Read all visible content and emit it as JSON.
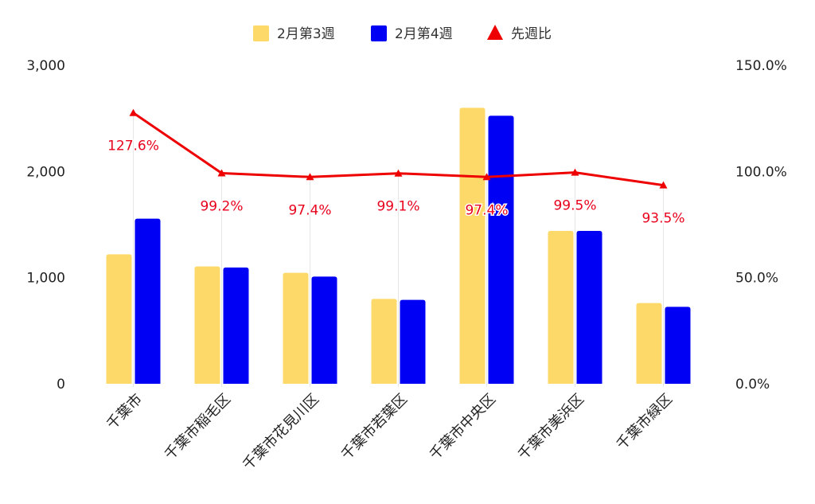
{
  "chart_data": {
    "type": "bar",
    "categories": [
      "千葉市",
      "千葉市稲毛区",
      "千葉市花見川区",
      "千葉市若葉区",
      "千葉市中央区",
      "千葉市美浜区",
      "千葉市緑区"
    ],
    "series": [
      {
        "name": "2月第3週",
        "kind": "bar",
        "axis": "left",
        "color": "#FDD96A",
        "values": [
          1220,
          1105,
          1045,
          800,
          2600,
          1440,
          760
        ]
      },
      {
        "name": "2月第4週",
        "kind": "bar",
        "axis": "left",
        "color": "#0000F5",
        "values": [
          1555,
          1095,
          1010,
          790,
          2525,
          1440,
          725
        ]
      },
      {
        "name": "先週比",
        "kind": "line",
        "axis": "right",
        "color": "#EE0000",
        "values": [
          127.6,
          99.2,
          97.4,
          99.1,
          97.4,
          99.5,
          93.5
        ]
      }
    ],
    "point_labels": [
      "127.6%",
      "99.2%",
      "97.4%",
      "99.1%",
      "97.4%",
      "99.5%",
      "93.5%"
    ],
    "y_left": {
      "range": [
        0,
        3000
      ],
      "ticks": [
        0,
        1000,
        2000,
        3000
      ],
      "tick_labels": [
        "0",
        "1,000",
        "2,000",
        "3,000"
      ]
    },
    "y_right": {
      "range": [
        0,
        150
      ],
      "ticks": [
        0,
        50,
        100,
        150
      ],
      "tick_labels": [
        "0.0%",
        "50.0%",
        "100.0%",
        "150.0%"
      ]
    },
    "legend_position": "top",
    "grid": false
  }
}
